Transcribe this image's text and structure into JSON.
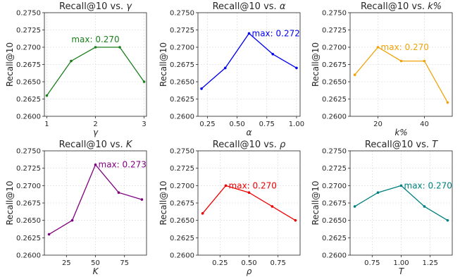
{
  "chart_data": [
    {
      "type": "line",
      "title_prefix": "Recall@10 vs. ",
      "title_var": "γ",
      "xlabel": "γ",
      "ylabel": "Recall@10",
      "xlim": [
        0.95,
        3.05
      ],
      "ylim": [
        0.26,
        0.275
      ],
      "xticks": [
        1,
        2,
        3
      ],
      "xtick_labels": [
        "1",
        "2",
        "3"
      ],
      "yticks": [
        0.26,
        0.2625,
        0.265,
        0.2675,
        0.27,
        0.2725,
        0.275
      ],
      "ytick_labels": [
        "0.2600",
        "0.2625",
        "0.2650",
        "0.2675",
        "0.2700",
        "0.2725",
        "0.2750"
      ],
      "x": [
        1,
        1.5,
        2,
        2.5,
        3
      ],
      "y": [
        0.263,
        0.268,
        0.27,
        0.27,
        0.265
      ],
      "color": "#1a7f1a",
      "annotation": {
        "text": "max: 0.270",
        "x": 2,
        "y": 0.27,
        "placement": "above"
      },
      "grid": true
    },
    {
      "type": "line",
      "title_prefix": "Recall@10 vs. ",
      "title_var": "α",
      "xlabel": "α",
      "ylabel": "Recall@10",
      "xlim": [
        0.17,
        1.03
      ],
      "ylim": [
        0.26,
        0.275
      ],
      "xticks": [
        0.25,
        0.5,
        0.75,
        1.0
      ],
      "xtick_labels": [
        "0.25",
        "0.50",
        "0.75",
        "1.00"
      ],
      "yticks": [
        0.26,
        0.2625,
        0.265,
        0.2675,
        0.27,
        0.2725,
        0.275
      ],
      "ytick_labels": [
        "0.2600",
        "0.2625",
        "0.2650",
        "0.2675",
        "0.2700",
        "0.2725",
        "0.2750"
      ],
      "x": [
        0.2,
        0.4,
        0.6,
        0.8,
        1.0
      ],
      "y": [
        0.264,
        0.267,
        0.272,
        0.269,
        0.267
      ],
      "color": "#0000ee",
      "annotation": {
        "text": "max: 0.272",
        "x": 0.6,
        "y": 0.272,
        "placement": "right"
      },
      "grid": true
    },
    {
      "type": "line",
      "title_prefix": "Recall@10 vs. ",
      "title_var": "k%",
      "xlabel": "k%",
      "ylabel": "Recall@10",
      "xlim": [
        8,
        52
      ],
      "ylim": [
        0.26,
        0.275
      ],
      "xticks": [
        20,
        40
      ],
      "xtick_labels": [
        "20",
        "40"
      ],
      "yticks": [
        0.26,
        0.2625,
        0.265,
        0.2675,
        0.27,
        0.2725,
        0.275
      ],
      "ytick_labels": [
        "0.2600",
        "0.2625",
        "0.2650",
        "0.2675",
        "0.2700",
        "0.2725",
        "0.2750"
      ],
      "x": [
        10,
        20,
        30,
        40,
        50
      ],
      "y": [
        0.266,
        0.27,
        0.268,
        0.268,
        0.262
      ],
      "color": "#f0a30a",
      "annotation": {
        "text": "max: 0.270",
        "x": 20,
        "y": 0.27,
        "placement": "right"
      },
      "grid": true
    },
    {
      "type": "line",
      "title_prefix": "Recall@10 vs. ",
      "title_var": "K",
      "xlabel": "K",
      "ylabel": "Recall@10",
      "xlim": [
        6,
        94
      ],
      "ylim": [
        0.26,
        0.275
      ],
      "xticks": [
        25,
        50,
        75
      ],
      "xtick_labels": [
        "25",
        "50",
        "75"
      ],
      "yticks": [
        0.26,
        0.2625,
        0.265,
        0.2675,
        0.27,
        0.2725,
        0.275
      ],
      "ytick_labels": [
        "0.2600",
        "0.2625",
        "0.2650",
        "0.2675",
        "0.2700",
        "0.2725",
        "0.2750"
      ],
      "x": [
        10,
        30,
        50,
        70,
        90
      ],
      "y": [
        0.263,
        0.265,
        0.273,
        0.269,
        0.268
      ],
      "color": "#7f007f",
      "annotation": {
        "text": "max: 0.273",
        "x": 50,
        "y": 0.273,
        "placement": "right"
      },
      "grid": true
    },
    {
      "type": "line",
      "title_prefix": "Recall@10 vs. ",
      "title_var": "ρ",
      "xlabel": "ρ",
      "ylabel": "Recall@10",
      "xlim": [
        0.06,
        0.94
      ],
      "ylim": [
        0.26,
        0.275
      ],
      "xticks": [
        0.25,
        0.5,
        0.75
      ],
      "xtick_labels": [
        "0.25",
        "0.50",
        "0.75"
      ],
      "yticks": [
        0.26,
        0.2625,
        0.265,
        0.2675,
        0.27,
        0.2725,
        0.275
      ],
      "ytick_labels": [
        "0.2600",
        "0.2625",
        "0.2650",
        "0.2675",
        "0.2700",
        "0.2725",
        "0.2750"
      ],
      "x": [
        0.1,
        0.3,
        0.5,
        0.7,
        0.9
      ],
      "y": [
        0.266,
        0.27,
        0.269,
        0.267,
        0.265
      ],
      "color": "#ee0000",
      "annotation": {
        "text": "max: 0.270",
        "x": 0.3,
        "y": 0.27,
        "placement": "right"
      },
      "grid": true
    },
    {
      "type": "line",
      "title_prefix": "Recall@10 vs. ",
      "title_var": "T",
      "xlabel": "T",
      "ylabel": "Recall@10",
      "xlim": [
        0.56,
        1.44
      ],
      "ylim": [
        0.26,
        0.275
      ],
      "xticks": [
        0.75,
        1.0,
        1.25
      ],
      "xtick_labels": [
        "0.75",
        "1.00",
        "1.25"
      ],
      "yticks": [
        0.26,
        0.2625,
        0.265,
        0.2675,
        0.27,
        0.2725,
        0.275
      ],
      "ytick_labels": [
        "0.2600",
        "0.2625",
        "0.2650",
        "0.2675",
        "0.2700",
        "0.2725",
        "0.2750"
      ],
      "x": [
        0.6,
        0.8,
        1.0,
        1.2,
        1.4
      ],
      "y": [
        0.267,
        0.269,
        0.27,
        0.267,
        0.265
      ],
      "color": "#008080",
      "annotation": {
        "text": "max: 0.270",
        "x": 1.0,
        "y": 0.27,
        "placement": "right"
      },
      "grid": true
    }
  ]
}
